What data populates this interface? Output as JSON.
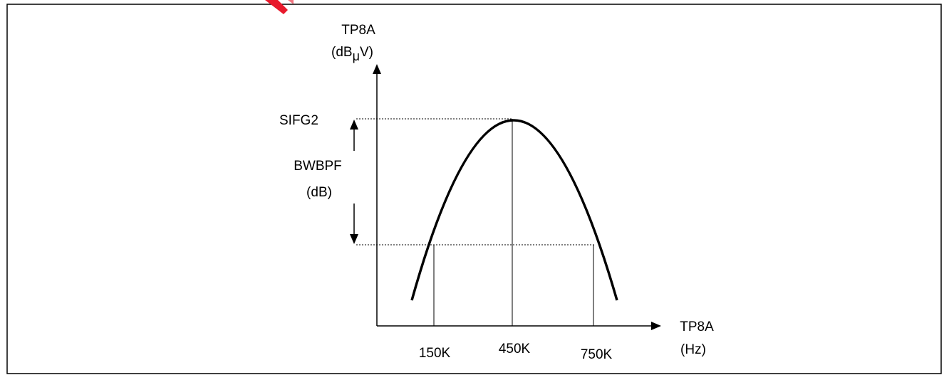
{
  "diagram": {
    "y_axis": {
      "title": "TP8A",
      "unit_prefix": "(dB",
      "unit_sub": "μ",
      "unit_suffix": "V)"
    },
    "x_axis": {
      "title": "TP8A",
      "unit": "(Hz)"
    },
    "peak_label": "SIFG2",
    "bandwidth_label": "BWBPF",
    "bandwidth_unit": "(dB)",
    "frequency_labels": [
      "150K",
      "450K",
      "750K"
    ],
    "colors": {
      "line": "#000000",
      "border": "#000000",
      "watermark": "#e8192c"
    }
  }
}
